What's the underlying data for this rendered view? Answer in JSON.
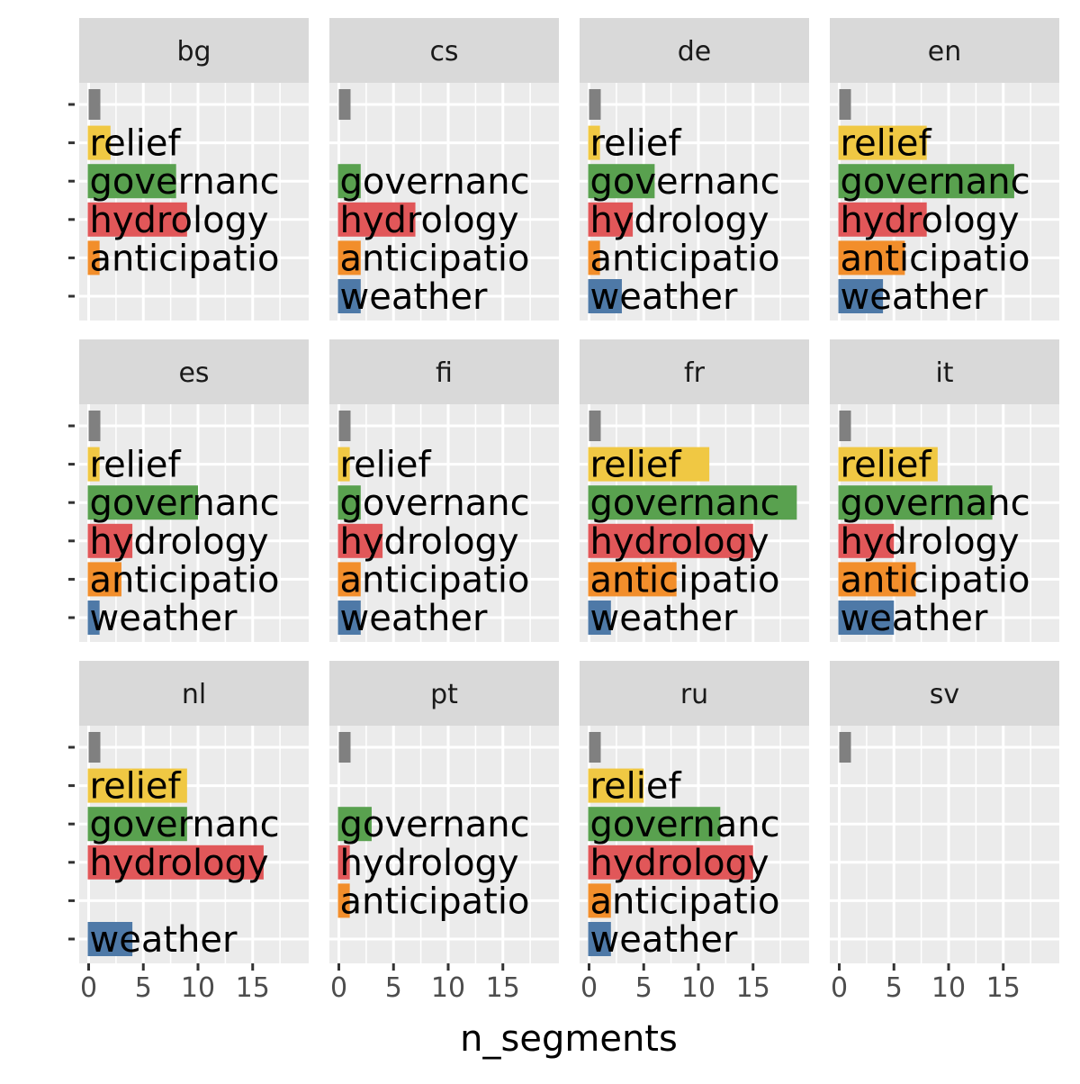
{
  "chart_data": {
    "type": "bar",
    "orientation": "horizontal",
    "facet_by": "language",
    "xlabel": "n_segments",
    "ylabel": "",
    "xlim": [
      0,
      20
    ],
    "x_ticks": [
      0,
      5,
      10,
      15
    ],
    "grid": true,
    "legend": "none",
    "categories": [
      "",
      "relief",
      "governanc",
      "hydrology",
      "anticipatio",
      "weather"
    ],
    "category_colors": {
      "": "#808080",
      "relief": "#f0c843",
      "governanc": "#59a14f",
      "hydrology": "#e15759",
      "anticipatio": "#f28e2b",
      "weather": "#4e79a7"
    },
    "facets": [
      {
        "label": "bg",
        "values": {
          "": 1,
          "relief": 2,
          "governanc": 8,
          "hydrology": 9,
          "anticipatio": 1
        }
      },
      {
        "label": "cs",
        "values": {
          "": 1,
          "governanc": 2,
          "hydrology": 7,
          "anticipatio": 2,
          "weather": 2
        }
      },
      {
        "label": "de",
        "values": {
          "": 1,
          "relief": 1,
          "governanc": 6,
          "hydrology": 4,
          "anticipatio": 1,
          "weather": 3
        }
      },
      {
        "label": "en",
        "values": {
          "": 1,
          "relief": 8,
          "governanc": 16,
          "hydrology": 8,
          "anticipatio": 6,
          "weather": 4
        }
      },
      {
        "label": "es",
        "values": {
          "": 1,
          "relief": 1,
          "governanc": 10,
          "hydrology": 4,
          "anticipatio": 3,
          "weather": 1
        }
      },
      {
        "label": "fi",
        "values": {
          "": 1,
          "relief": 1,
          "governanc": 2,
          "hydrology": 4,
          "anticipatio": 2,
          "weather": 2
        }
      },
      {
        "label": "fr",
        "values": {
          "": 1,
          "relief": 11,
          "governanc": 19,
          "hydrology": 15,
          "anticipatio": 8,
          "weather": 2
        }
      },
      {
        "label": "it",
        "values": {
          "": 1,
          "relief": 9,
          "governanc": 14,
          "hydrology": 5,
          "anticipatio": 7,
          "weather": 5
        }
      },
      {
        "label": "nl",
        "values": {
          "": 1,
          "relief": 9,
          "governanc": 9,
          "hydrology": 16,
          "weather": 4
        }
      },
      {
        "label": "pt",
        "values": {
          "": 1,
          "governanc": 3,
          "hydrology": 1,
          "anticipatio": 1
        }
      },
      {
        "label": "ru",
        "values": {
          "": 1,
          "relief": 5,
          "governanc": 12,
          "hydrology": 15,
          "anticipatio": 2,
          "weather": 2
        }
      },
      {
        "label": "sv",
        "values": {
          "": 1
        }
      }
    ]
  }
}
